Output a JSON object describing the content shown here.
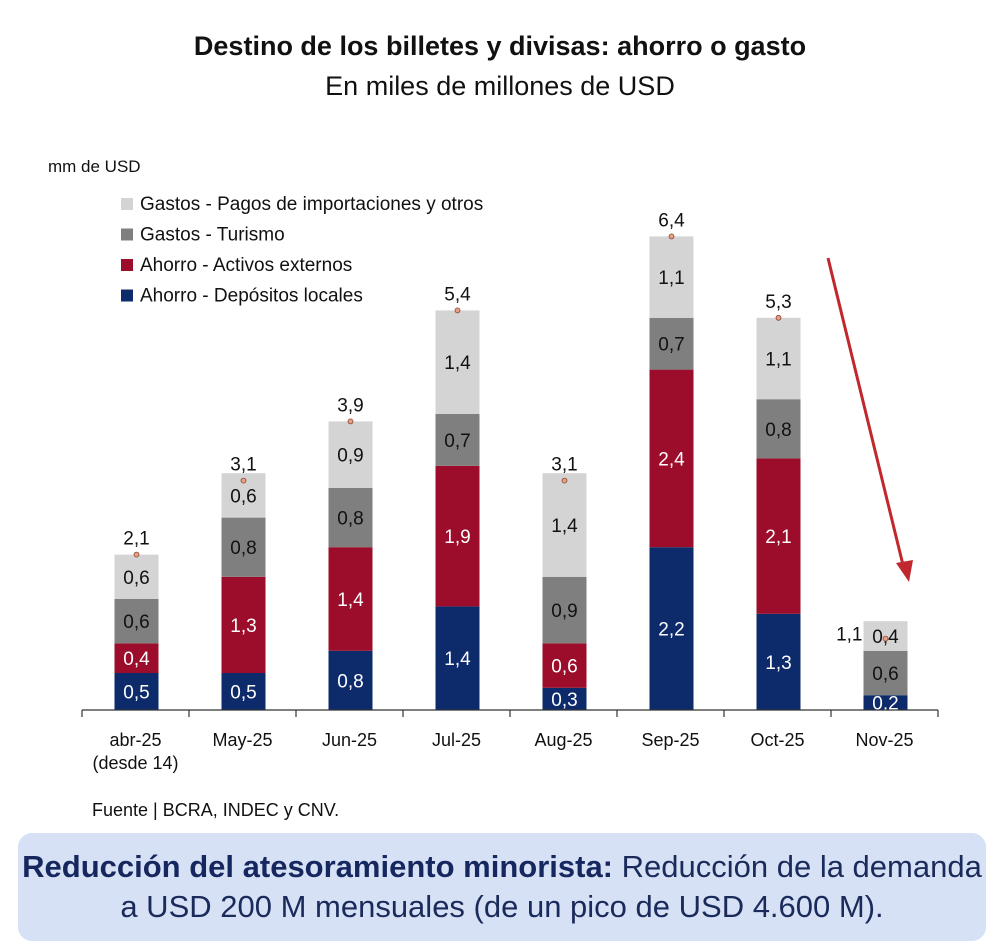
{
  "chart_data": {
    "type": "bar",
    "stacked": true,
    "title": "Destino de los billetes y divisas: ahorro o gasto",
    "subtitle": "En miles de millones de USD",
    "ylabel": "mm de USD",
    "xlabel": "",
    "ylim": [
      0,
      6.6
    ],
    "grid": false,
    "legend_position": "top-left",
    "categories": [
      "abr-25",
      "May-25",
      "Jun-25",
      "Jul-25",
      "Aug-25",
      "Sep-25",
      "Oct-25",
      "Nov-25"
    ],
    "category_notes": [
      "(desde 14)",
      "",
      "",
      "",
      "",
      "",
      "",
      ""
    ],
    "series": [
      {
        "name": "Ahorro - Depósitos locales",
        "color": "#0d2a6b",
        "label_color": "#ffffff",
        "values": [
          0.5,
          0.5,
          0.8,
          1.4,
          0.3,
          2.2,
          1.3,
          0.2
        ]
      },
      {
        "name": "Ahorro - Activos externos",
        "color": "#9b0d2a",
        "label_color": "#ffffff",
        "values": [
          0.4,
          1.3,
          1.4,
          1.9,
          0.6,
          2.4,
          2.1,
          0
        ]
      },
      {
        "name": "Gastos - Turismo",
        "color": "#7f7f7f",
        "label_color": "#111111",
        "values": [
          0.6,
          0.8,
          0.8,
          0.7,
          0.9,
          0.7,
          0.8,
          0.6
        ]
      },
      {
        "name": "Gastos - Pagos de importaciones y otros",
        "color": "#d4d4d4",
        "label_color": "#111111",
        "values": [
          0.6,
          0.6,
          0.9,
          1.4,
          1.4,
          1.1,
          1.1,
          0.4
        ]
      }
    ],
    "totals": [
      2.1,
      3.1,
      3.9,
      5.4,
      3.1,
      6.4,
      5.3,
      1.1
    ],
    "annotations": [
      "downward red arrow pointing toward Nov-25"
    ]
  },
  "source": "Fuente | BCRA, INDEC y CNV.",
  "callout": {
    "bold": "Reducción del atesoramiento minorista:",
    "text": " Reducción de la demanda a USD 200 M mensuales (de un pico de USD 4.600 M)."
  },
  "colors": {
    "arrow": "#c0282d",
    "callout_bg": "#d6e1f5"
  }
}
